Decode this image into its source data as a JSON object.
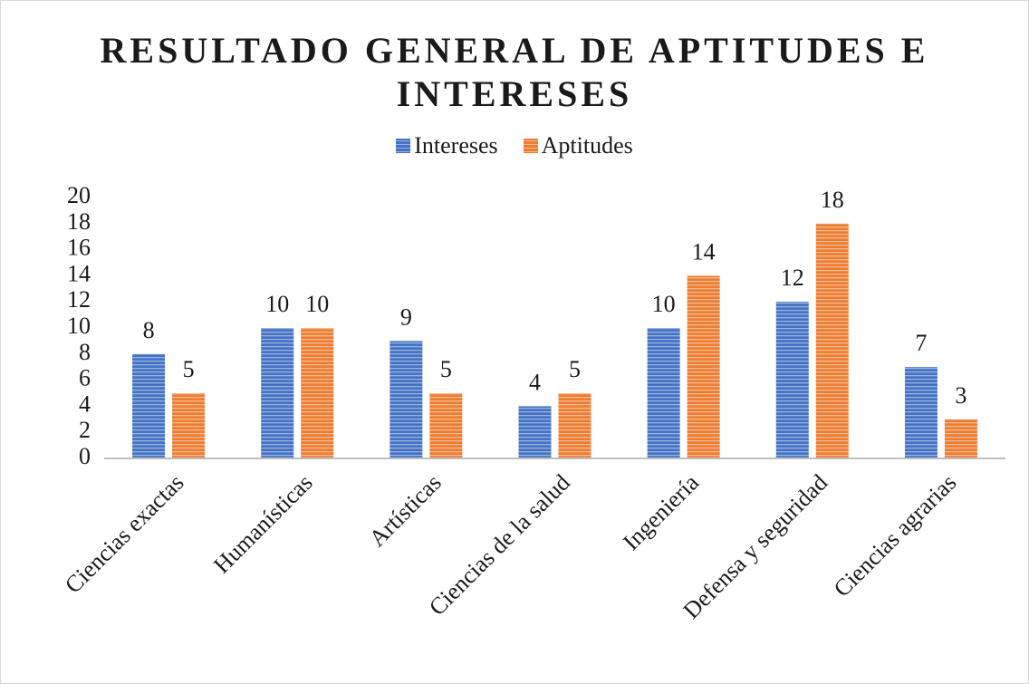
{
  "chart_data": {
    "type": "bar",
    "title": "RESULTADO GENERAL DE APTITUDES E INTERESES",
    "categories": [
      "Ciencias exactas",
      "Humanísticas",
      "Artísticas",
      "Ciencias de la salud",
      "Ingeniería",
      "Defensa y seguridad",
      "Ciencias agrarias"
    ],
    "series": [
      {
        "name": "Intereses",
        "color": "#4472c4",
        "values": [
          8,
          10,
          9,
          4,
          10,
          12,
          7
        ]
      },
      {
        "name": "Aptitudes",
        "color": "#ed7d31",
        "values": [
          5,
          10,
          5,
          5,
          14,
          18,
          3
        ]
      }
    ],
    "ylim": [
      0,
      20
    ],
    "yticks": [
      0,
      2,
      4,
      6,
      8,
      10,
      12,
      14,
      16,
      18,
      20
    ],
    "grid": false,
    "legend": "top"
  }
}
